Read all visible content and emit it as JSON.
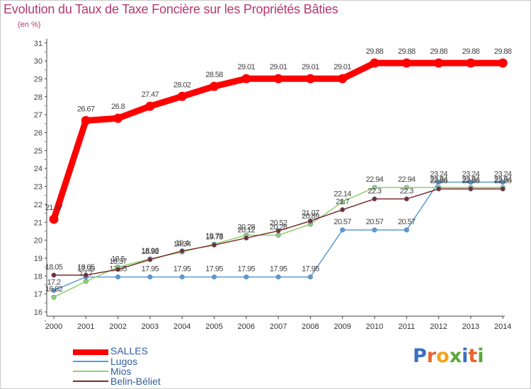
{
  "title": "Evolution du Taux de Taxe Foncière sur les Propriétés Bâties",
  "subtitle": "(en %)",
  "brand": {
    "name": "Proxiti",
    "letters": [
      "P",
      "r",
      "o",
      "x",
      "i",
      "t",
      "i"
    ],
    "colors": [
      "#3a6fc4",
      "#e8642b",
      "#f2a31b",
      "#5aa83a",
      "#3a6fc4",
      "#e8642b",
      "#5aa83a"
    ]
  },
  "chart_data": {
    "type": "line",
    "title": "Evolution du Taux de Taxe Foncière sur les Propriétés Bâties",
    "ylabel": "(en %)",
    "xlabel": "",
    "categories": [
      "2000",
      "2001",
      "2002",
      "2003",
      "2004",
      "2005",
      "2006",
      "2007",
      "2008",
      "2009",
      "2010",
      "2011",
      "2012",
      "2013",
      "2014"
    ],
    "yticks": [
      "16",
      "17",
      "18",
      "19",
      "20",
      "21",
      "22",
      "23",
      "24",
      "25",
      "26",
      "27",
      "28",
      "29",
      "30",
      "31"
    ],
    "ylim": [
      16,
      31
    ],
    "grid": false,
    "legend_position": "bottom-left",
    "series": [
      {
        "name": "SALLES",
        "color": "#ff0000",
        "values": [
          21.17,
          26.67,
          26.8,
          27.47,
          28.02,
          28.58,
          29.01,
          29.01,
          29.01,
          29.01,
          29.88,
          29.88,
          29.88,
          29.88,
          29.88
        ],
        "labels": [
          "21.17",
          "26.67",
          "26.8",
          "27.47",
          "28.02",
          "28.58",
          "29.01",
          "29.01",
          "29.01",
          "29.01",
          "29.88",
          "29.88",
          "29.88",
          "29.88",
          "29.88"
        ]
      },
      {
        "name": "Lugos",
        "color": "#5b9bd5",
        "values": [
          17.2,
          17.95,
          17.95,
          17.95,
          17.95,
          17.95,
          17.95,
          17.95,
          17.95,
          20.57,
          20.57,
          20.57,
          23.24,
          23.24,
          23.24
        ],
        "labels": [
          "17.2",
          "17.95",
          "17.95",
          "17.95",
          "17.95",
          "17.95",
          "17.95",
          "17.95",
          "17.95",
          "20.57",
          "20.57",
          "20.57",
          "23.24",
          "23.24",
          "23.24"
        ]
      },
      {
        "name": "Mios",
        "color": "#8fd16a",
        "values": [
          16.82,
          17.7,
          18.5,
          18.96,
          19.34,
          19.78,
          20.28,
          20.28,
          20.89,
          22.14,
          22.94,
          22.94,
          22.94,
          22.94,
          22.94
        ],
        "labels": [
          "16.82",
          "17.7",
          "18.5",
          "18.96",
          "19.34",
          "19.78",
          "20.28",
          "20.28",
          "20.89",
          "22.14",
          "22.94",
          "22.94",
          "22.94",
          "22.94",
          "22.94"
        ]
      },
      {
        "name": "Belin-Béliet",
        "color": "#7b2d2d",
        "values": [
          18.05,
          18.05,
          18.37,
          18.92,
          19.4,
          19.73,
          20.12,
          20.52,
          21.07,
          21.7,
          22.3,
          22.3,
          22.86,
          22.86,
          22.86
        ],
        "labels": [
          "18.05",
          "18.05",
          "18.37",
          "18.92",
          "19.4",
          "19.73",
          "20.12",
          "20.52",
          "21.07",
          "21.7",
          "22.3",
          "22.3",
          "22.86",
          "22.86",
          "22.86"
        ]
      }
    ]
  }
}
